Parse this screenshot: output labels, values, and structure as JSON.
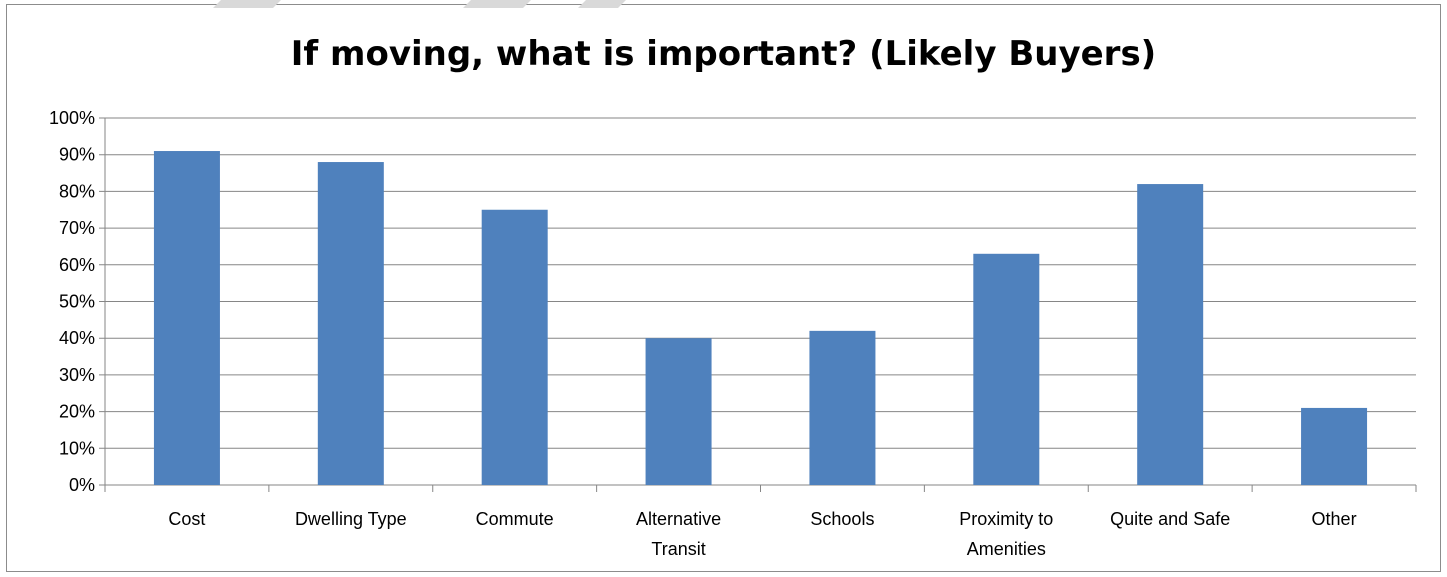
{
  "chart_data": {
    "type": "bar",
    "title": "If moving, what is important? (Likely Buyers)",
    "xlabel": "",
    "ylabel": "",
    "categories": [
      [
        "Cost"
      ],
      [
        "Dwelling Type"
      ],
      [
        "Commute"
      ],
      [
        "Alternative",
        "Transit"
      ],
      [
        "Schools"
      ],
      [
        "Proximity to",
        "Amenities"
      ],
      [
        "Quite and Safe"
      ],
      [
        "Other"
      ]
    ],
    "values": [
      91,
      88,
      75,
      40,
      42,
      63,
      82,
      21
    ],
    "ylim": [
      0,
      100
    ],
    "ytick_labels": [
      "0%",
      "10%",
      "20%",
      "30%",
      "40%",
      "50%",
      "60%",
      "70%",
      "80%",
      "90%",
      "100%"
    ],
    "grid": true,
    "legend": "none",
    "colors": {
      "bar": "#4f81bd",
      "grid": "#868686",
      "axis": "#868686"
    }
  }
}
